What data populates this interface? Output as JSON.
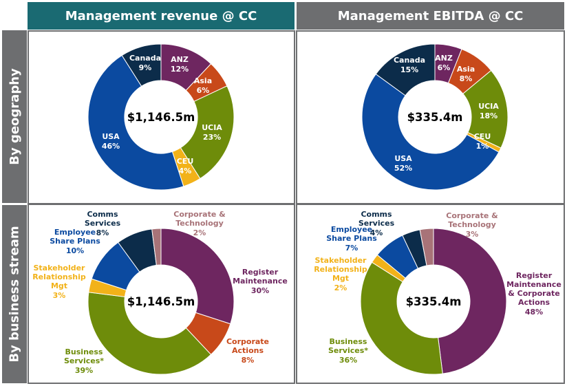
{
  "colors": {
    "header_revenue": "#1a6a72",
    "header_ebitda": "#6d6e70",
    "row_header": "#6d6e70",
    "panel_border": "#6d6e70"
  },
  "headers": {
    "revenue": "Management revenue @ CC",
    "ebitda": "Management EBITDA @ CC"
  },
  "rows": {
    "geography": "By geography",
    "business_stream": "By business stream"
  },
  "chart_data": [
    {
      "type": "pie",
      "title": "Management revenue @ CC",
      "subtitle": "By geography",
      "center_label": "$1,146.5m",
      "slices": [
        {
          "label": "ANZ",
          "value": 12,
          "value_text": "12%",
          "color": "#6e2660"
        },
        {
          "label": "Asia",
          "value": 6,
          "value_text": "6%",
          "color": "#c8491a"
        },
        {
          "label": "UCIA",
          "value": 23,
          "value_text": "23%",
          "color": "#6e8c0a"
        },
        {
          "label": "CEU",
          "value": 4,
          "value_text": "4%",
          "color": "#f2b219"
        },
        {
          "label": "USA",
          "value": 46,
          "value_text": "46%",
          "color": "#0b4aa0"
        },
        {
          "label": "Canada",
          "value": 9,
          "value_text": "9%",
          "color": "#0c2c4a"
        }
      ]
    },
    {
      "type": "pie",
      "title": "Management EBITDA @ CC",
      "subtitle": "By geography",
      "center_label": "$335.4m",
      "slices": [
        {
          "label": "ANZ",
          "value": 6,
          "value_text": "6%",
          "color": "#6e2660"
        },
        {
          "label": "Asia",
          "value": 8,
          "value_text": "8%",
          "color": "#c8491a"
        },
        {
          "label": "UCIA",
          "value": 18,
          "value_text": "18%",
          "color": "#6e8c0a"
        },
        {
          "label": "CEU",
          "value": 1,
          "value_text": "1%",
          "color": "#f2b219"
        },
        {
          "label": "USA",
          "value": 52,
          "value_text": "52%",
          "color": "#0b4aa0"
        },
        {
          "label": "Canada",
          "value": 15,
          "value_text": "15%",
          "color": "#0c2c4a"
        }
      ]
    },
    {
      "type": "pie",
      "title": "Management revenue @ CC",
      "subtitle": "By business stream",
      "center_label": "$1,146.5m",
      "slices": [
        {
          "label": "Register Maintenance",
          "value": 30,
          "value_text": "30%",
          "color": "#6e2660"
        },
        {
          "label": "Corporate Actions",
          "value": 8,
          "value_text": "8%",
          "color": "#c8491a"
        },
        {
          "label": "Business Services*",
          "value": 39,
          "value_text": "39%",
          "color": "#6e8c0a"
        },
        {
          "label": "Stakeholder Relationship Mgt",
          "value": 3,
          "value_text": "3%",
          "color": "#f2b219"
        },
        {
          "label": "Employee Share Plans",
          "value": 10,
          "value_text": "10%",
          "color": "#0b4aa0"
        },
        {
          "label": "Comms Services",
          "value": 8,
          "value_text": "8%",
          "color": "#0c2c4a"
        },
        {
          "label": "Corporate & Technology",
          "value": 2,
          "value_text": "2%",
          "color": "#a87378"
        }
      ]
    },
    {
      "type": "pie",
      "title": "Management EBITDA @ CC",
      "subtitle": "By business stream",
      "center_label": "$335.4m",
      "slices": [
        {
          "label": "Register Maintenance & Corporate Actions",
          "value": 48,
          "value_text": "48%",
          "color": "#6e2660"
        },
        {
          "label": "Business Services*",
          "value": 36,
          "value_text": "36%",
          "color": "#6e8c0a"
        },
        {
          "label": "Stakeholder Relationship Mgt",
          "value": 2,
          "value_text": "2%",
          "color": "#f2b219"
        },
        {
          "label": "Employee Share Plans",
          "value": 7,
          "value_text": "7%",
          "color": "#0b4aa0"
        },
        {
          "label": "Comms Services",
          "value": 4,
          "value_text": "4%",
          "color": "#0c2c4a"
        },
        {
          "label": "Corporate & Technology",
          "value": 3,
          "value_text": "3%",
          "color": "#a87378"
        }
      ]
    }
  ]
}
